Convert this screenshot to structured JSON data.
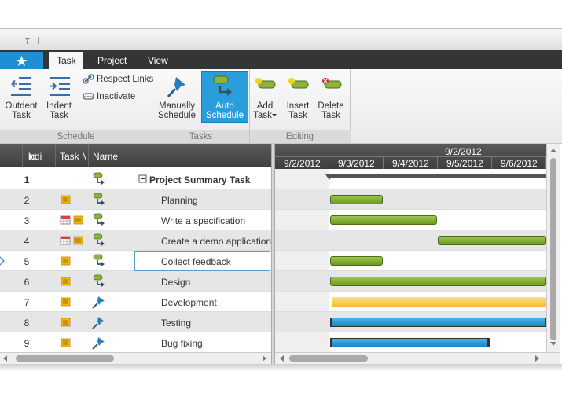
{
  "ribbon": {
    "tabs": [
      "Task",
      "Project",
      "View"
    ],
    "groups": [
      {
        "label": "Schedule",
        "buttons": [
          {
            "lines": [
              "Outdent",
              "Task"
            ]
          },
          {
            "lines": [
              "Indent",
              "Task"
            ]
          },
          {
            "lines": [
              "Respect Links"
            ]
          },
          {
            "lines": [
              "Inactivate"
            ]
          }
        ]
      },
      {
        "label": "Tasks",
        "buttons": [
          {
            "lines": [
              "Manually",
              "Schedule"
            ]
          },
          {
            "lines": [
              "Auto",
              "Schedule"
            ]
          }
        ]
      },
      {
        "label": "Editing",
        "buttons": [
          {
            "lines": [
              "Add",
              "Task"
            ]
          },
          {
            "lines": [
              "Insert",
              "Task"
            ]
          },
          {
            "lines": [
              "Delete",
              "Task"
            ]
          }
        ]
      }
    ]
  },
  "grid": {
    "columns": [
      "Id",
      "Indi",
      "Task Mo",
      "Name"
    ],
    "rows": [
      {
        "id": 1,
        "name": "Project Summary Task"
      },
      {
        "id": 2,
        "name": "Planning"
      },
      {
        "id": 3,
        "name": "Write a specification"
      },
      {
        "id": 4,
        "name": "Create a demo application"
      },
      {
        "id": 5,
        "name": "Collect feedback"
      },
      {
        "id": 6,
        "name": "Design"
      },
      {
        "id": 7,
        "name": "Development"
      },
      {
        "id": 8,
        "name": "Testing"
      },
      {
        "id": 9,
        "name": "Bug fixing"
      }
    ]
  },
  "gantt": {
    "range_label": "9/2/2012",
    "dates": [
      "9/2/2012",
      "9/3/2012",
      "9/4/2012",
      "9/5/2012",
      "9/6/2012"
    ]
  }
}
